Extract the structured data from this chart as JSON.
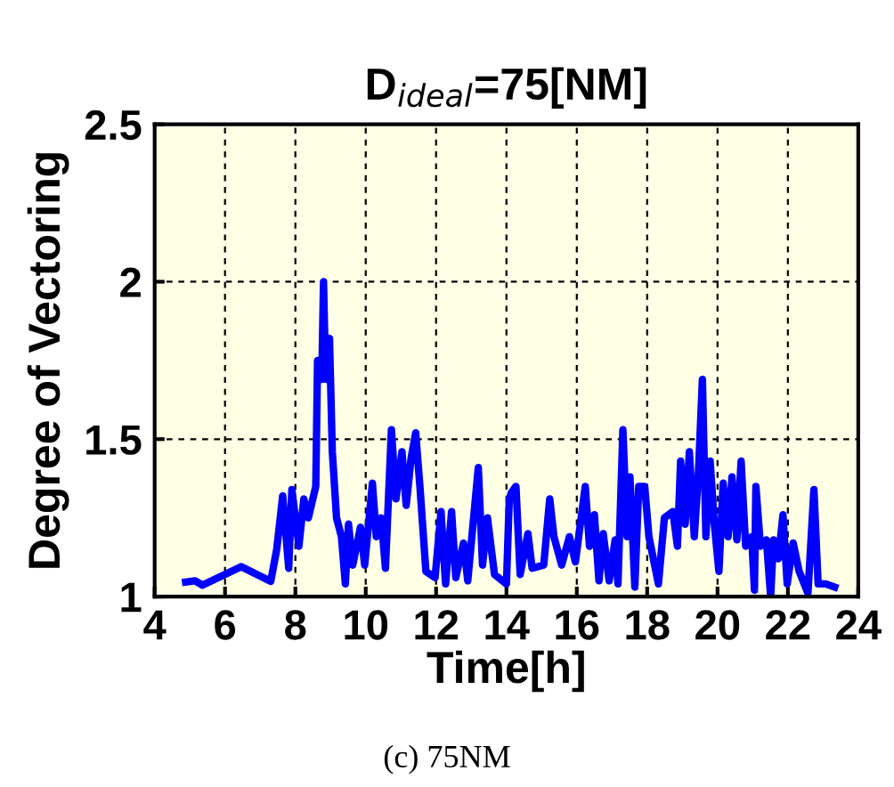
{
  "chart_data": {
    "type": "line",
    "title": "D$_{ideal}$=75[NM]",
    "xlabel": "Time[h]",
    "ylabel": "Degree of Vectoring",
    "annotations": [
      "(c) 75NM"
    ],
    "xlim": [
      4,
      24
    ],
    "xticks": [
      4,
      6,
      8,
      10,
      12,
      14,
      16,
      18,
      20,
      22,
      24
    ],
    "ylim": [
      1,
      2.5
    ],
    "yticks": [
      1,
      1.5,
      2,
      2.5
    ],
    "grid": true,
    "line_style": "solid",
    "marker": "none",
    "series": [
      {
        "color": "#0000ff",
        "x": [
          4.88,
          5.15,
          5.36,
          6.46,
          7.3,
          7.47,
          7.64,
          7.81,
          7.9,
          8.1,
          8.24,
          8.37,
          8.58,
          8.63,
          8.75,
          8.8,
          8.86,
          8.97,
          9.05,
          9.17,
          9.31,
          9.42,
          9.51,
          9.63,
          9.85,
          9.97,
          10.19,
          10.3,
          10.44,
          10.56,
          10.73,
          10.86,
          11.03,
          11.15,
          11.29,
          11.42,
          11.54,
          11.71,
          11.97,
          12.14,
          12.27,
          12.44,
          12.56,
          12.78,
          12.9,
          13.2,
          13.32,
          13.46,
          13.66,
          14.0,
          14.08,
          14.14,
          14.27,
          14.39,
          14.61,
          14.73,
          15.06,
          15.23,
          15.35,
          15.57,
          15.79,
          15.96,
          16.24,
          16.36,
          16.5,
          16.63,
          16.75,
          16.92,
          17.09,
          17.17,
          17.31,
          17.43,
          17.51,
          17.65,
          17.76,
          17.93,
          18.05,
          18.32,
          18.49,
          18.73,
          18.86,
          18.95,
          19.08,
          19.2,
          19.34,
          19.46,
          19.57,
          19.67,
          19.79,
          19.91,
          20.04,
          20.16,
          20.3,
          20.41,
          20.55,
          20.67,
          20.8,
          20.97,
          21.05,
          21.09,
          21.22,
          21.39,
          21.51,
          21.59,
          21.73,
          21.86,
          21.98,
          22.15,
          22.32,
          22.57,
          22.74,
          22.86,
          23.08,
          23.33
        ],
        "values": [
          1.046,
          1.05,
          1.036,
          1.095,
          1.048,
          1.15,
          1.32,
          1.09,
          1.34,
          1.16,
          1.31,
          1.25,
          1.35,
          1.75,
          1.69,
          2.0,
          1.69,
          1.82,
          1.46,
          1.25,
          1.19,
          1.04,
          1.23,
          1.1,
          1.22,
          1.1,
          1.36,
          1.19,
          1.25,
          1.09,
          1.53,
          1.31,
          1.46,
          1.29,
          1.44,
          1.52,
          1.35,
          1.08,
          1.06,
          1.27,
          1.04,
          1.27,
          1.06,
          1.17,
          1.05,
          1.41,
          1.1,
          1.25,
          1.07,
          1.04,
          1.31,
          1.33,
          1.35,
          1.07,
          1.2,
          1.09,
          1.1,
          1.31,
          1.19,
          1.1,
          1.19,
          1.11,
          1.35,
          1.16,
          1.26,
          1.05,
          1.2,
          1.05,
          1.18,
          1.04,
          1.53,
          1.19,
          1.38,
          1.03,
          1.35,
          1.35,
          1.19,
          1.04,
          1.25,
          1.27,
          1.16,
          1.43,
          1.23,
          1.46,
          1.19,
          1.4,
          1.69,
          1.19,
          1.43,
          1.23,
          1.08,
          1.36,
          1.19,
          1.38,
          1.18,
          1.43,
          1.16,
          1.19,
          1.02,
          1.35,
          1.16,
          1.18,
          1.0,
          1.18,
          1.12,
          1.26,
          1.04,
          1.17,
          1.08,
          1.01,
          1.34,
          1.04,
          1.04,
          1.03
        ]
      }
    ]
  }
}
